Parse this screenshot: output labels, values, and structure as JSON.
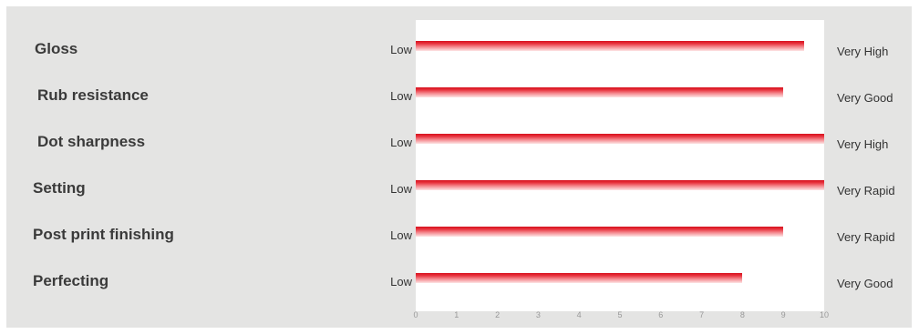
{
  "chart_data": {
    "type": "bar",
    "orientation": "horizontal",
    "categories": [
      "Gloss",
      "Rub resistance",
      "Dot sharpness",
      "Setting",
      "Post print finishing",
      "Perfecting"
    ],
    "values": [
      9.5,
      9,
      10,
      10,
      9,
      8
    ],
    "low_labels": [
      "Low",
      "Low",
      "Low",
      "Low",
      "Low",
      "Low"
    ],
    "high_labels": [
      "Very High",
      "Very Good",
      "Very High",
      "Very Rapid",
      "Very Rapid",
      "Very Good"
    ],
    "xlim": [
      0,
      10
    ],
    "x_ticks": [
      "0",
      "1",
      "2",
      "3",
      "4",
      "5",
      "6",
      "7",
      "8",
      "9",
      "10"
    ],
    "grid": false,
    "colors": {
      "bar": "#e02030",
      "panel": "#e4e4e3",
      "plot": "#ffffff"
    }
  }
}
